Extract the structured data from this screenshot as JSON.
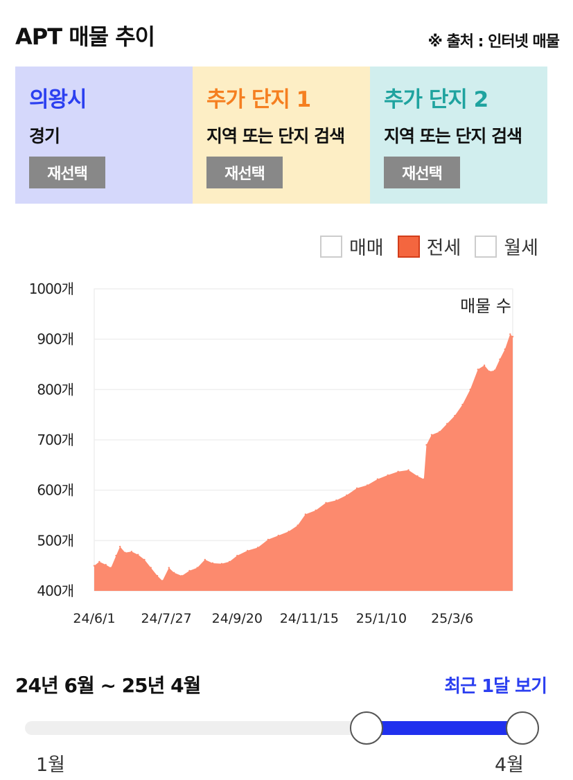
{
  "header": {
    "title": "APT 매물 추이",
    "source": "※ 출처 : 인터넷 매물"
  },
  "cards": [
    {
      "name": "의왕시",
      "sub": "경기",
      "button": "재선택",
      "bg": "#d5d8fb",
      "color": "#2b3ff0"
    },
    {
      "name": "추가 단지 1",
      "sub": "지역 또는 단지 검색",
      "button": "재선택",
      "bg": "#fdeec5",
      "color": "#f57f20"
    },
    {
      "name": "추가 단지 2",
      "sub": "지역 또는 단지 검색",
      "button": "재선택",
      "bg": "#d1eeee",
      "color": "#1fa39f"
    }
  ],
  "legend": [
    {
      "label": "매매",
      "checked": false
    },
    {
      "label": "전세",
      "checked": true
    },
    {
      "label": "월세",
      "checked": false
    }
  ],
  "chart_data": {
    "type": "area",
    "series_label": "매물 수",
    "color": "#fc8a6e",
    "y_ticks": [
      "400개",
      "500개",
      "600개",
      "700개",
      "800개",
      "900개",
      "1000개"
    ],
    "ylim": [
      400,
      1000
    ],
    "x_ticks": [
      "24/6/1",
      "24/7/27",
      "24/9/20",
      "24/11/15",
      "25/1/10",
      "25/3/6"
    ],
    "xlim": [
      "24/6/1",
      "25/4/22"
    ],
    "points": [
      [
        "24/6/1",
        450
      ],
      [
        "24/6/5",
        458
      ],
      [
        "24/6/10",
        452
      ],
      [
        "24/6/14",
        446
      ],
      [
        "24/6/18",
        470
      ],
      [
        "24/6/21",
        488
      ],
      [
        "24/6/25",
        476
      ],
      [
        "24/6/30",
        478
      ],
      [
        "24/7/5",
        472
      ],
      [
        "24/7/10",
        462
      ],
      [
        "24/7/15",
        446
      ],
      [
        "24/7/20",
        430
      ],
      [
        "24/7/24",
        420
      ],
      [
        "24/7/29",
        446
      ],
      [
        "24/8/2",
        436
      ],
      [
        "24/8/8",
        430
      ],
      [
        "24/8/14",
        440
      ],
      [
        "24/8/20",
        446
      ],
      [
        "24/8/26",
        462
      ],
      [
        "24/9/1",
        455
      ],
      [
        "24/9/8",
        454
      ],
      [
        "24/9/14",
        458
      ],
      [
        "24/9/20",
        470
      ],
      [
        "24/9/28",
        480
      ],
      [
        "24/10/6",
        486
      ],
      [
        "24/10/14",
        502
      ],
      [
        "24/10/22",
        510
      ],
      [
        "24/10/30",
        518
      ],
      [
        "24/11/6",
        530
      ],
      [
        "24/11/12",
        552
      ],
      [
        "24/11/20",
        560
      ],
      [
        "24/11/28",
        575
      ],
      [
        "24/12/6",
        580
      ],
      [
        "24/12/14",
        590
      ],
      [
        "24/12/22",
        604
      ],
      [
        "24/12/30",
        610
      ],
      [
        "25/1/7",
        622
      ],
      [
        "25/1/15",
        630
      ],
      [
        "25/1/23",
        637
      ],
      [
        "25/1/31",
        640
      ],
      [
        "25/2/7",
        628
      ],
      [
        "25/2/12",
        622
      ],
      [
        "25/2/14",
        690
      ],
      [
        "25/2/18",
        710
      ],
      [
        "25/2/24",
        716
      ],
      [
        "25/3/2",
        732
      ],
      [
        "25/3/8",
        748
      ],
      [
        "25/3/14",
        770
      ],
      [
        "25/3/20",
        800
      ],
      [
        "25/3/26",
        840
      ],
      [
        "25/3/31",
        848
      ],
      [
        "25/4/4",
        836
      ],
      [
        "25/4/8",
        838
      ],
      [
        "25/4/12",
        860
      ],
      [
        "25/4/16",
        880
      ],
      [
        "25/4/20",
        910
      ],
      [
        "25/4/22",
        905
      ]
    ]
  },
  "range": {
    "title": "24년 6월 ~ 25년 4월",
    "recent_label": "최근 1달 보기",
    "min_label": "1월",
    "max_label": "4월",
    "min_month": 1,
    "max_month": 4,
    "start_month": 3,
    "end_month": 4
  }
}
